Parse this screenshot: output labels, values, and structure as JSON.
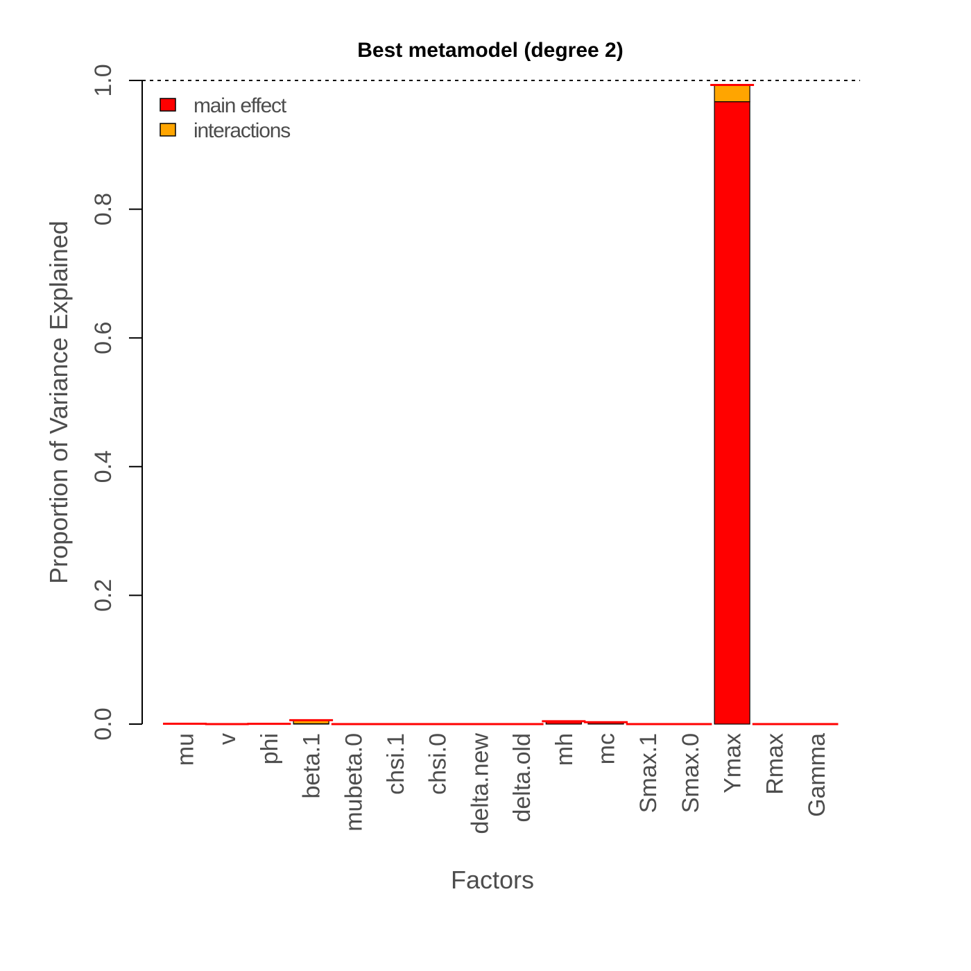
{
  "chart_data": {
    "type": "bar",
    "stacked": true,
    "title": "Best metamodel (degree 2)",
    "xlabel": "Factors",
    "ylabel": "Proportion of Variance Explained",
    "ylim": [
      0,
      1
    ],
    "yticks": [
      "0.0",
      "0.2",
      "0.4",
      "0.6",
      "0.8",
      "1.0"
    ],
    "reference_line": {
      "y": 1.0,
      "style": "dotted"
    },
    "categories": [
      "mu",
      "v",
      "phi",
      "beta.1",
      "mubeta.0",
      "chsi.1",
      "chsi.0",
      "delta.new",
      "delta.old",
      "mh",
      "mc",
      "Smax.1",
      "Smax.0",
      "Ymax",
      "Rmax",
      "Gamma"
    ],
    "series": [
      {
        "name": "main effect",
        "color": "#ff0000",
        "values": [
          0.0005,
          0,
          0.0004,
          0.0006,
          0,
          0,
          0,
          0,
          0,
          0.004,
          0.002,
          0,
          0,
          0.967,
          0,
          0
        ]
      },
      {
        "name": "interactions",
        "color": "#ffa500",
        "values": [
          0,
          0,
          0,
          0.0054,
          0,
          0,
          0,
          0,
          0,
          0.0004,
          0.0009,
          0,
          0,
          0.026,
          0,
          0
        ]
      }
    ],
    "total_marker_color": "#ff0000",
    "legend": {
      "position": "top-left",
      "entries": [
        "main effect",
        "interactions"
      ]
    },
    "grid": false
  }
}
